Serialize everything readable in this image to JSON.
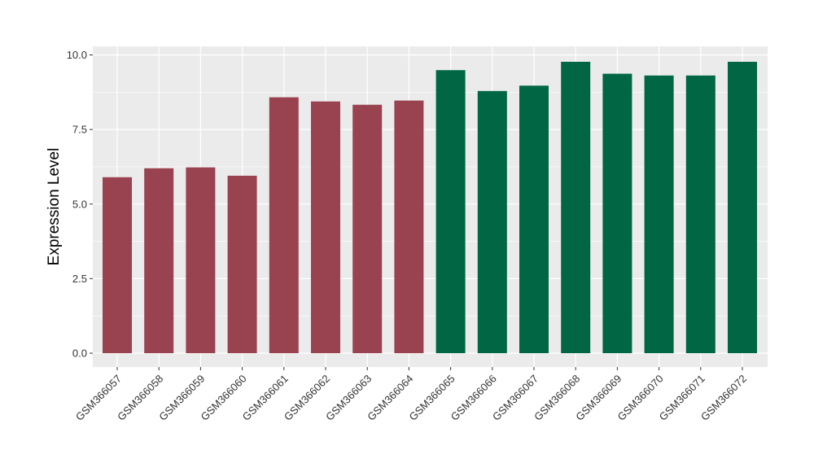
{
  "chart_data": {
    "type": "bar",
    "title": "",
    "xlabel": "",
    "ylabel": "Expression Level",
    "ylim": [
      0,
      10.4
    ],
    "yticks": [
      "0.0",
      "2.5",
      "5.0",
      "7.5",
      "10.0"
    ],
    "grid": true,
    "categories": [
      "GSM366057",
      "GSM366058",
      "GSM366059",
      "GSM366060",
      "GSM366061",
      "GSM366062",
      "GSM366063",
      "GSM366064",
      "GSM366065",
      "GSM366066",
      "GSM366067",
      "GSM366068",
      "GSM366069",
      "GSM366070",
      "GSM366071",
      "GSM366072"
    ],
    "values": [
      5.9,
      6.2,
      6.23,
      5.95,
      8.58,
      8.44,
      8.33,
      8.47,
      9.49,
      8.79,
      8.97,
      9.77,
      9.37,
      9.31,
      9.31,
      9.77
    ],
    "bar_colors": [
      "#9a4350",
      "#9a4350",
      "#9a4350",
      "#9a4350",
      "#9a4350",
      "#9a4350",
      "#9a4350",
      "#9a4350",
      "#006644",
      "#006644",
      "#006644",
      "#006644",
      "#006644",
      "#006644",
      "#006644",
      "#006644"
    ],
    "panel_background": "#ebebeb",
    "gridline_color": "#ffffff"
  }
}
